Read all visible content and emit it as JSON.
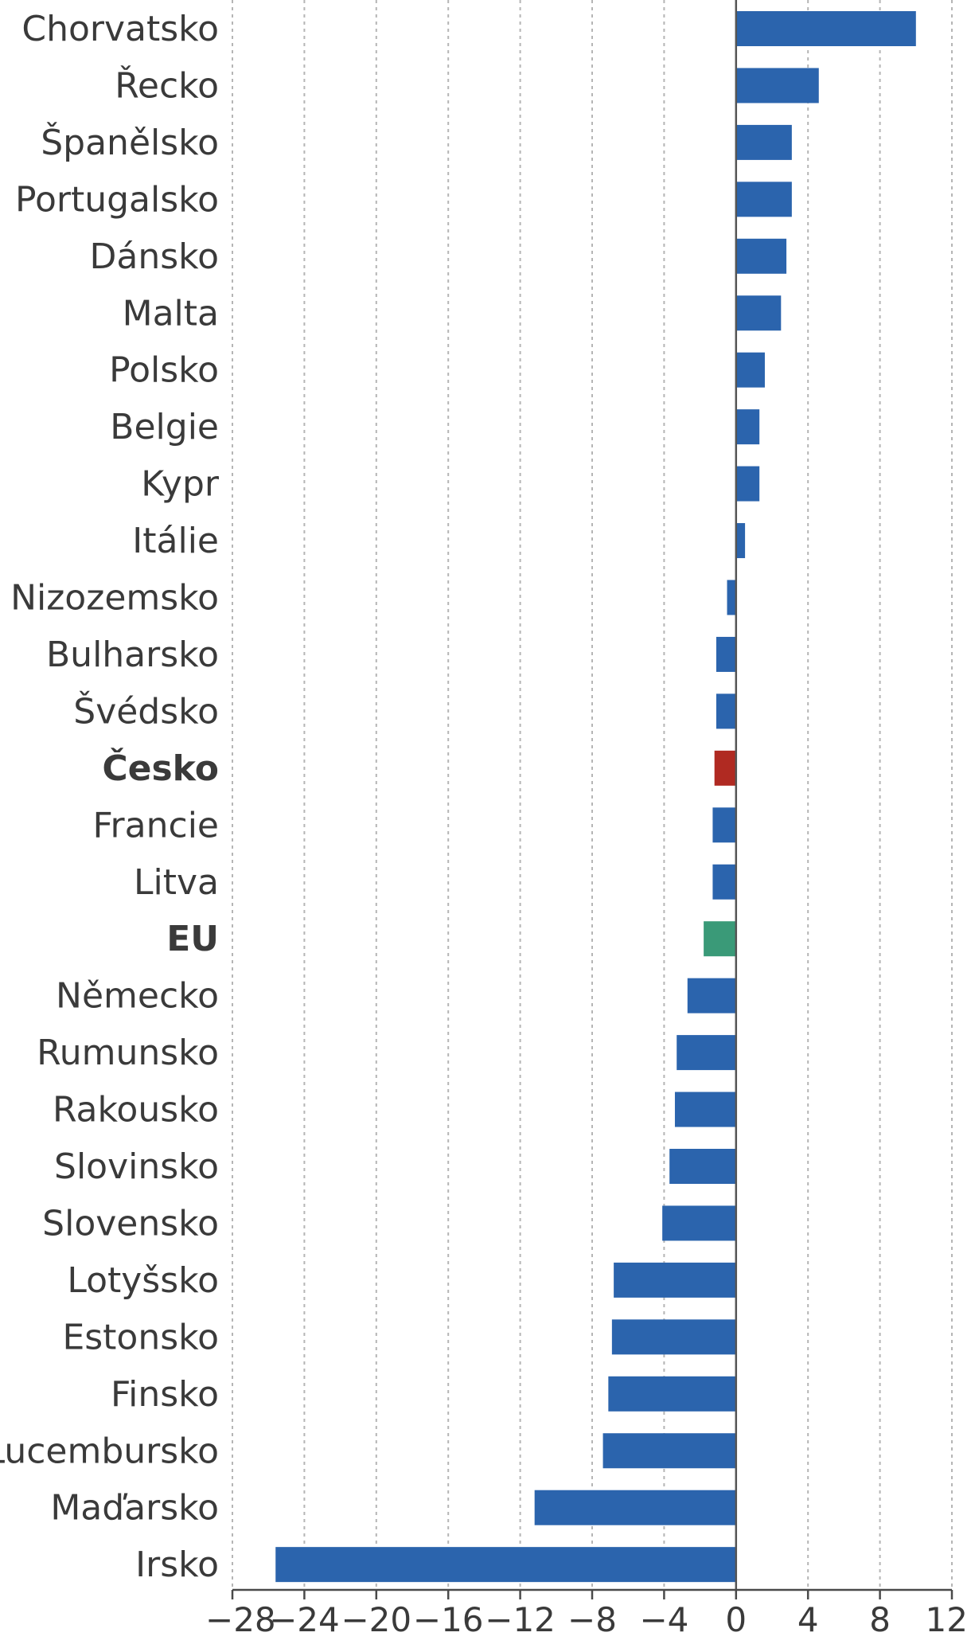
{
  "chart_data": {
    "type": "bar",
    "orientation": "horizontal",
    "title": "",
    "xlabel": "",
    "ylabel": "",
    "xlim": [
      -28,
      12
    ],
    "xticks": [
      -28,
      -24,
      -20,
      -16,
      -12,
      -8,
      -4,
      0,
      4,
      8,
      12
    ],
    "tick_labels": [
      "−28",
      "−24",
      "−20",
      "−16",
      "−12",
      "−8",
      "−4",
      "0",
      "4",
      "8",
      "12"
    ],
    "grid": "vertical dashed",
    "legend": "none",
    "categories": [
      "Chorvatsko",
      "Řecko",
      "Španělsko",
      "Portugalsko",
      "Dánsko",
      "Malta",
      "Polsko",
      "Belgie",
      "Kypr",
      "Itálie",
      "Nizozemsko",
      "Bulharsko",
      "Švédsko",
      "Česko",
      "Francie",
      "Litva",
      "EU",
      "Německo",
      "Rumunsko",
      "Rakousko",
      "Slovinsko",
      "Slovensko",
      "Lotyšsko",
      "Estonsko",
      "Finsko",
      "Lucembursko",
      "Maďarsko",
      "Irsko"
    ],
    "values": [
      10.0,
      4.6,
      3.1,
      3.1,
      2.8,
      2.5,
      1.6,
      1.3,
      1.3,
      0.5,
      -0.5,
      -1.1,
      -1.1,
      -1.2,
      -1.3,
      -1.3,
      -1.8,
      -2.7,
      -3.3,
      -3.4,
      -3.7,
      -4.1,
      -6.8,
      -6.9,
      -7.1,
      -7.4,
      -11.2,
      -25.6
    ],
    "bold_categories": [
      "Česko",
      "EU"
    ],
    "colors": {
      "default": "#2b64ad",
      "Česko": "#b02a22",
      "EU": "#3a9a78",
      "grid": "#b5b5b5",
      "axis": "#4a4a4a",
      "text": "#3a3a3a"
    }
  }
}
